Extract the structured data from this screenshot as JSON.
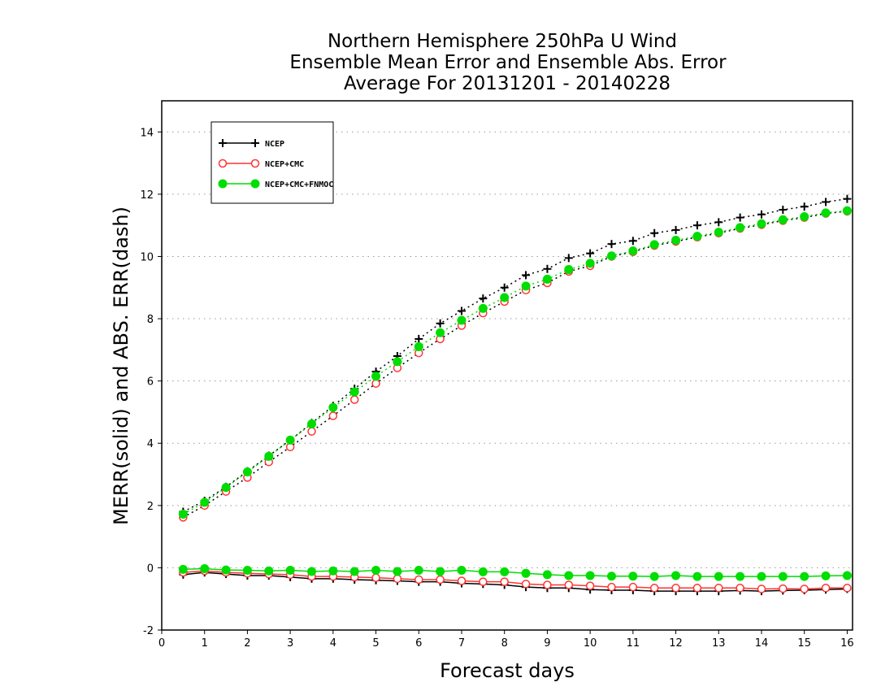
{
  "chart_data": {
    "type": "line",
    "title_lines": [
      "Northern Hemisphere 250hPa U Wind",
      "Ensemble Mean Error and Ensemble Abs. Error",
      "Average For 20131201 - 20140228"
    ],
    "xlabel": "Forecast days",
    "ylabel": "MERR(solid) and ABS. ERR(dash)",
    "xlim": [
      0,
      16.125
    ],
    "ylim": [
      -2,
      15
    ],
    "xticks": [
      0,
      1,
      2,
      3,
      4,
      5,
      6,
      7,
      8,
      9,
      10,
      11,
      12,
      13,
      14,
      15,
      16
    ],
    "yticks": [
      -2,
      0,
      2,
      4,
      6,
      8,
      10,
      12,
      14
    ],
    "grid": "horizontal dotted",
    "legend_position": "top-left",
    "x": [
      0.5,
      1,
      1.5,
      2,
      2.5,
      3,
      3.5,
      4,
      4.5,
      5,
      5.5,
      6,
      6.5,
      7,
      7.5,
      8,
      8.5,
      9,
      9.5,
      10,
      10.5,
      11,
      11.5,
      12,
      12.5,
      13,
      13.5,
      14,
      14.5,
      15,
      15.5,
      16
    ],
    "series": [
      {
        "name": "NCEP",
        "color": "#000000",
        "marker": "plus",
        "abs_err": [
          1.8,
          2.15,
          2.6,
          3.1,
          3.6,
          4.1,
          4.65,
          5.2,
          5.75,
          6.3,
          6.8,
          7.35,
          7.85,
          8.25,
          8.65,
          9.0,
          9.4,
          9.6,
          9.95,
          10.1,
          10.4,
          10.5,
          10.75,
          10.85,
          11.0,
          11.1,
          11.25,
          11.35,
          11.5,
          11.6,
          11.75,
          11.85
        ],
        "mean_err": [
          -0.22,
          -0.15,
          -0.2,
          -0.25,
          -0.25,
          -0.3,
          -0.35,
          -0.35,
          -0.38,
          -0.4,
          -0.42,
          -0.45,
          -0.45,
          -0.5,
          -0.52,
          -0.55,
          -0.62,
          -0.65,
          -0.65,
          -0.7,
          -0.72,
          -0.72,
          -0.75,
          -0.75,
          -0.75,
          -0.75,
          -0.73,
          -0.75,
          -0.73,
          -0.72,
          -0.7,
          -0.68
        ]
      },
      {
        "name": "NCEP+CMC",
        "color": "#ff3333",
        "marker": "open-circle",
        "abs_err": [
          1.62,
          2.0,
          2.45,
          2.9,
          3.4,
          3.88,
          4.38,
          4.88,
          5.4,
          5.92,
          6.42,
          6.9,
          7.35,
          7.78,
          8.18,
          8.55,
          8.92,
          9.15,
          9.52,
          9.7,
          10.0,
          10.15,
          10.35,
          10.48,
          10.62,
          10.75,
          10.9,
          11.02,
          11.15,
          11.25,
          11.38,
          11.45
        ],
        "mean_err": [
          -0.15,
          -0.1,
          -0.15,
          -0.18,
          -0.2,
          -0.22,
          -0.28,
          -0.28,
          -0.3,
          -0.32,
          -0.35,
          -0.38,
          -0.38,
          -0.42,
          -0.45,
          -0.45,
          -0.52,
          -0.55,
          -0.55,
          -0.58,
          -0.62,
          -0.62,
          -0.65,
          -0.65,
          -0.65,
          -0.65,
          -0.65,
          -0.68,
          -0.67,
          -0.68,
          -0.65,
          -0.65
        ]
      },
      {
        "name": "NCEP+CMC+FNMOC",
        "color": "#00dd00",
        "marker": "filled-circle",
        "abs_err": [
          1.72,
          2.1,
          2.58,
          3.08,
          3.58,
          4.1,
          4.62,
          5.15,
          5.65,
          6.15,
          6.62,
          7.1,
          7.55,
          7.95,
          8.33,
          8.68,
          9.05,
          9.27,
          9.58,
          9.78,
          10.02,
          10.18,
          10.38,
          10.52,
          10.65,
          10.78,
          10.93,
          11.05,
          11.18,
          11.28,
          11.4,
          11.47
        ],
        "mean_err": [
          -0.05,
          -0.03,
          -0.07,
          -0.08,
          -0.1,
          -0.08,
          -0.12,
          -0.1,
          -0.12,
          -0.08,
          -0.12,
          -0.08,
          -0.12,
          -0.08,
          -0.13,
          -0.13,
          -0.18,
          -0.22,
          -0.25,
          -0.25,
          -0.27,
          -0.27,
          -0.28,
          -0.25,
          -0.28,
          -0.28,
          -0.28,
          -0.28,
          -0.28,
          -0.28,
          -0.26,
          -0.25
        ]
      }
    ]
  }
}
